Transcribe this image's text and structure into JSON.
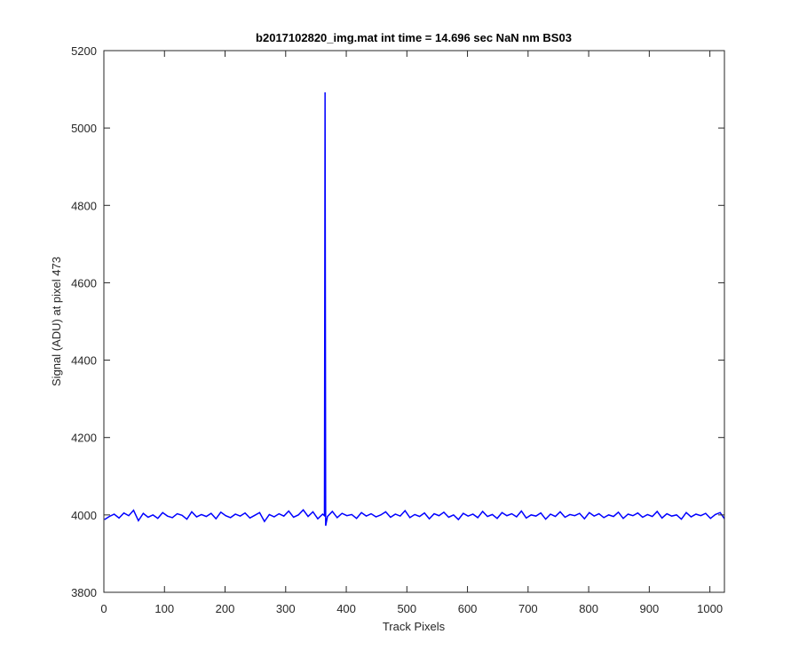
{
  "chart_data": {
    "type": "line",
    "title": "b2017102820_img.mat int time = 14.696 sec  NaN nm BS03",
    "x_label": "Track Pixels",
    "y_label": "Signal (ADU) at pixel 473",
    "xlim": [
      0,
      1024
    ],
    "ylim": [
      3800,
      5200
    ],
    "xticks": [
      0,
      100,
      200,
      300,
      400,
      500,
      600,
      700,
      800,
      900,
      1000
    ],
    "yticks": [
      3800,
      4000,
      4200,
      4400,
      4600,
      4800,
      5000,
      5200
    ],
    "x": [
      1,
      9,
      17,
      25,
      33,
      41,
      49,
      57,
      65,
      73,
      81,
      89,
      97,
      105,
      113,
      121,
      129,
      137,
      145,
      153,
      161,
      169,
      177,
      185,
      193,
      201,
      209,
      217,
      225,
      233,
      241,
      249,
      257,
      265,
      273,
      281,
      289,
      297,
      305,
      313,
      321,
      329,
      337,
      345,
      353,
      361,
      364,
      365,
      366,
      369,
      377,
      385,
      393,
      401,
      409,
      417,
      425,
      433,
      441,
      449,
      457,
      465,
      473,
      481,
      489,
      497,
      505,
      513,
      521,
      529,
      537,
      545,
      553,
      561,
      569,
      577,
      585,
      593,
      601,
      609,
      617,
      625,
      633,
      641,
      649,
      657,
      665,
      673,
      681,
      689,
      697,
      705,
      713,
      721,
      729,
      737,
      745,
      753,
      761,
      769,
      777,
      785,
      793,
      801,
      809,
      817,
      825,
      833,
      841,
      849,
      857,
      865,
      873,
      881,
      889,
      897,
      905,
      913,
      921,
      929,
      937,
      945,
      953,
      961,
      969,
      977,
      985,
      993,
      1001,
      1009,
      1017,
      1024
    ],
    "series": [
      {
        "color": "#0000ff",
        "values": [
          3988,
          3996,
          4002,
          3992,
          4005,
          3998,
          4012,
          3985,
          4004,
          3994,
          4000,
          3991,
          4006,
          3997,
          3993,
          4003,
          3999,
          3989,
          4008,
          3995,
          4001,
          3996,
          4004,
          3990,
          4007,
          3998,
          3993,
          4002,
          3997,
          4005,
          3992,
          3999,
          4006,
          3983,
          4001,
          3995,
          4003,
          3997,
          4010,
          3994,
          4000,
          4013,
          3996,
          4008,
          3990,
          4002,
          3998,
          5092,
          3972,
          3996,
          4009,
          3993,
          4004,
          3998,
          4001,
          3991,
          4006,
          3997,
          4003,
          3995,
          4000,
          4008,
          3994,
          4002,
          3997,
          4011,
          3993,
          4001,
          3996,
          4005,
          3990,
          4003,
          3998,
          4007,
          3994,
          4000,
          3988,
          4004,
          3997,
          4002,
          3993,
          4009,
          3996,
          4001,
          3991,
          4006,
          3998,
          4003,
          3995,
          4010,
          3992,
          4000,
          3997,
          4005,
          3989,
          4002,
          3996,
          4008,
          3994,
          4001,
          3998,
          4004,
          3990,
          4006,
          3997,
          4003,
          3993,
          4000,
          3996,
          4007,
          3991,
          4002,
          3998,
          4005,
          3994,
          4001,
          3996,
          4009,
          3992,
          4003,
          3997,
          4000,
          3989,
          4006,
          3995,
          4002,
          3998,
          4004,
          3991,
          4001,
          4006,
          3990
        ]
      }
    ]
  }
}
